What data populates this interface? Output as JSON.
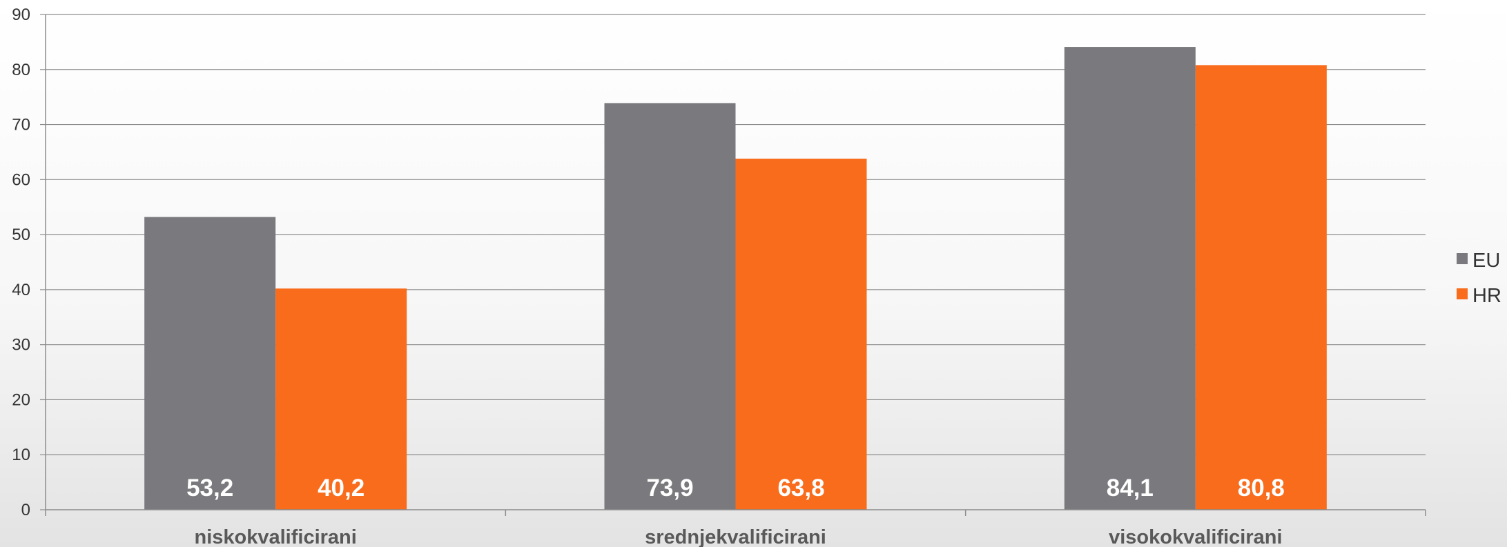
{
  "chart_data": {
    "type": "bar",
    "categories": [
      "niskokvalificirani",
      "srednjekvalificirani",
      "visokokvalificirani"
    ],
    "series": [
      {
        "name": "EU",
        "values": [
          53.2,
          73.9,
          84.1
        ],
        "labels": [
          "53,2",
          "73,9",
          "84,1"
        ],
        "color": "#7a7a7e"
      },
      {
        "name": "HR",
        "values": [
          40.2,
          63.8,
          80.8
        ],
        "labels": [
          "40,2",
          "63,8",
          "80,8"
        ],
        "color": "#f96c1c"
      }
    ],
    "yticks": [
      "0",
      "10",
      "20",
      "30",
      "40",
      "50",
      "60",
      "70",
      "80",
      "90"
    ],
    "ylim": [
      0,
      90
    ],
    "grid": true,
    "legend": "right",
    "title": "",
    "xlabel": "",
    "ylabel": ""
  }
}
